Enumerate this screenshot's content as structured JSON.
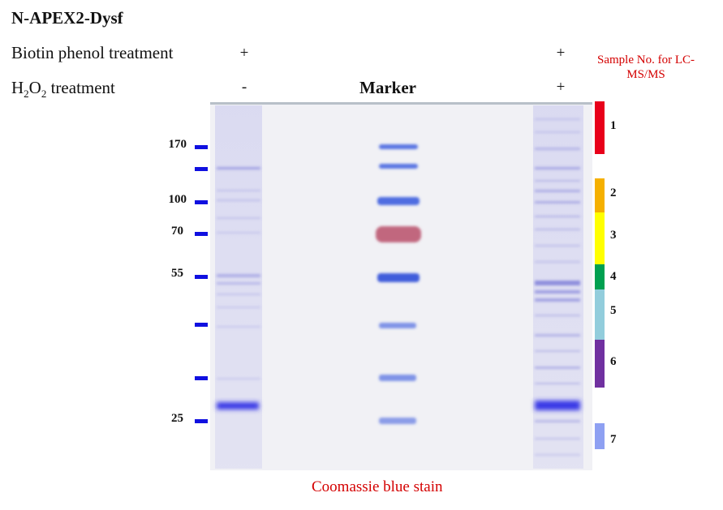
{
  "title": "N-APEX2-Dysf",
  "rows": {
    "biotin": {
      "label": "Biotin phenol treatment",
      "lane1": "+",
      "lane3": "+"
    },
    "h2o2": {
      "label_main": "H",
      "label_sub1": "2",
      "label_mid": "O",
      "label_sub2": "2",
      "label_rest": " treatment",
      "lane1": "-",
      "lane3": "+"
    }
  },
  "marker_title": "Marker",
  "sample_title": "Sample No. for LC-MS/MS",
  "caption": "Coomassie blue stain",
  "mw_markers": [
    {
      "label": "170",
      "kda": 170
    },
    {
      "label": "",
      "kda": 130
    },
    {
      "label": "100",
      "kda": 100
    },
    {
      "label": "70",
      "kda": 70
    },
    {
      "label": "55",
      "kda": 55
    },
    {
      "label": "",
      "kda": 40
    },
    {
      "label": "",
      "kda": 35
    },
    {
      "label": "25",
      "kda": 25
    }
  ],
  "samples": [
    {
      "label": "1",
      "color": "#e8001a"
    },
    {
      "label": "2",
      "color": "#f5b000"
    },
    {
      "label": "3",
      "color": "#ffff00"
    },
    {
      "label": "4",
      "color": "#00a050"
    },
    {
      "label": "5",
      "color": "#92cddc"
    },
    {
      "label": "6",
      "color": "#7030a0"
    },
    {
      "label": "7",
      "color": "#8ea0f2"
    }
  ],
  "colors": {
    "marker_blue": "#3355dd",
    "marker_red": "#b8506a",
    "band_blue": "#3a3ae0",
    "gel_bg": "#f2f2f6"
  }
}
